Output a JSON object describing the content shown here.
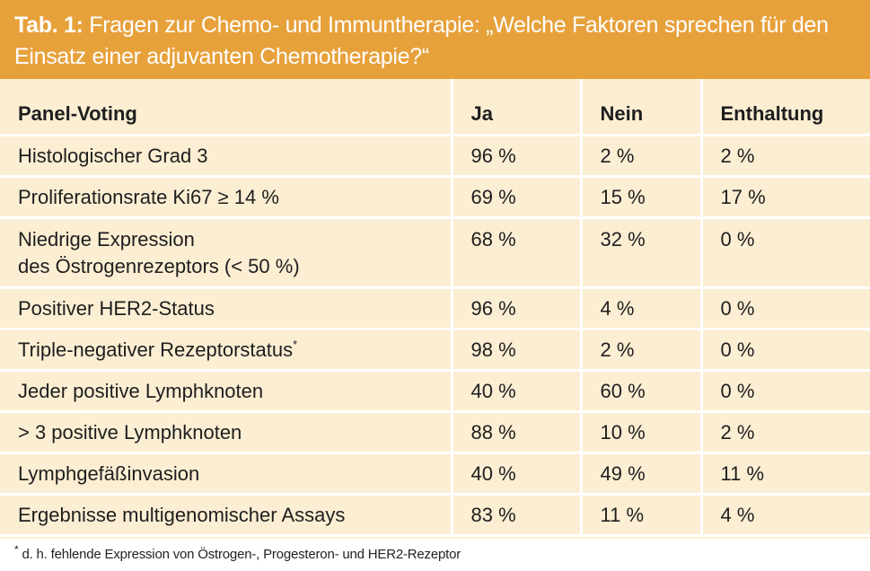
{
  "header": {
    "label": "Tab. 1:",
    "title": "Fragen zur Chemo- und Immuntherapie: „Welche Faktoren sprechen für den Einsatz einer adjuvanten Chemotherapie?“"
  },
  "table": {
    "columns": [
      "Panel-Voting",
      "Ja",
      "Nein",
      "Enthaltung"
    ],
    "rows": [
      {
        "factor": "Histologischer Grad 3",
        "ja": "96 %",
        "nein": "2 %",
        "enthaltung": "2 %"
      },
      {
        "factor": "Proliferationsrate Ki67 ≥ 14 %",
        "ja": "69 %",
        "nein": "15 %",
        "enthaltung": "17 %"
      },
      {
        "factor_line1": "Niedrige Expression",
        "factor_line2": "des Östrogenrezeptors (< 50 %)",
        "ja": "68 %",
        "nein": "32 %",
        "enthaltung": "0 %"
      },
      {
        "factor": "Positiver HER2-Status",
        "ja": "96 %",
        "nein": "4 %",
        "enthaltung": "0 %"
      },
      {
        "factor": "Triple-negativer Rezeptorstatus",
        "marker": "*",
        "ja": "98 %",
        "nein": "2 %",
        "enthaltung": "0 %"
      },
      {
        "factor": "Jeder positive Lymphknoten",
        "ja": "40 %",
        "nein": "60 %",
        "enthaltung": "0 %"
      },
      {
        "factor": "> 3 positive Lymphknoten",
        "ja": "88 %",
        "nein": "10 %",
        "enthaltung": "2 %"
      },
      {
        "factor": "Lymphgefäßinvasion",
        "ja": "40 %",
        "nein": "49 %",
        "enthaltung": "11 %"
      },
      {
        "factor": "Ergebnisse multigenomischer Assays",
        "ja": "83 %",
        "nein": "11 %",
        "enthaltung": "4 %"
      }
    ]
  },
  "footnote": {
    "marker": "*",
    "text": " d. h. fehlende Expression von Östrogen-, Progesteron- und HER2-Rezeptor"
  },
  "colors": {
    "header_bg": "#e7a13b",
    "table_bg": "#fbeed3",
    "header_text": "#ffffff"
  }
}
